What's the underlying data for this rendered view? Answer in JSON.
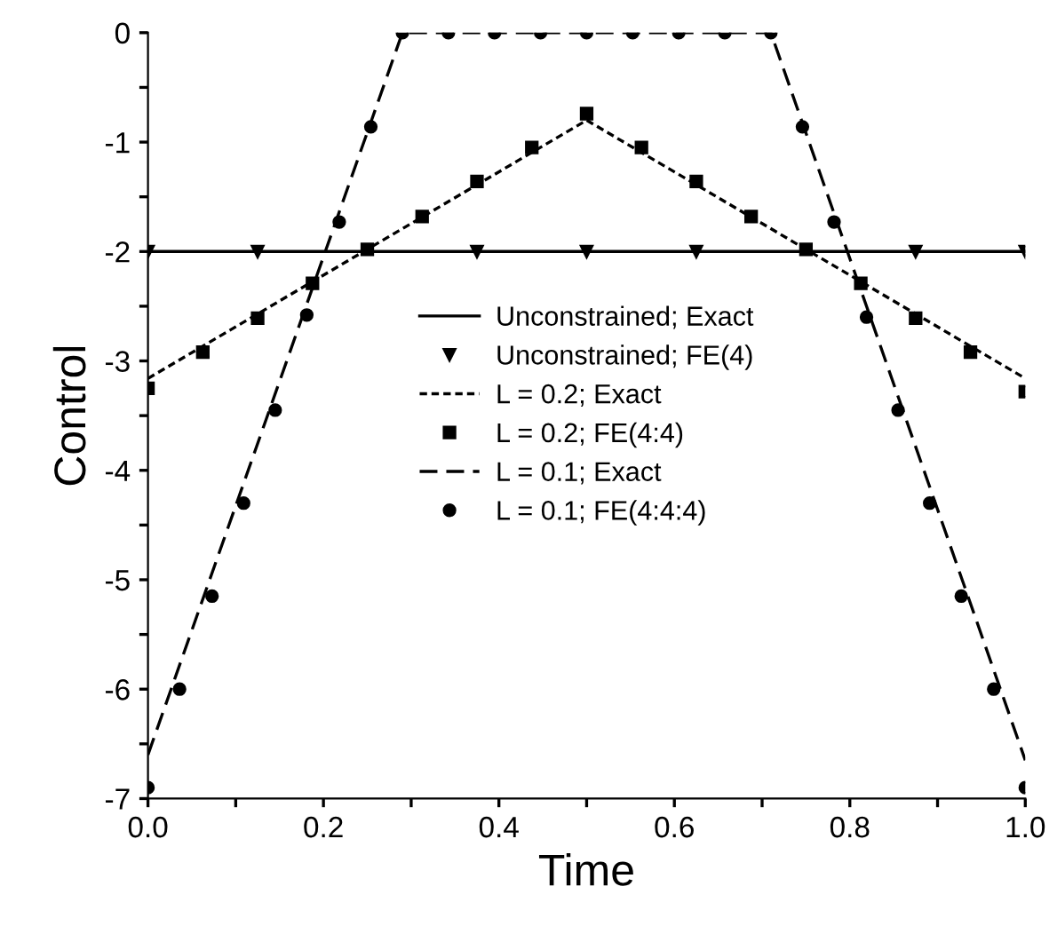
{
  "chart_data": {
    "type": "line",
    "xlabel": "Time",
    "ylabel": "Control",
    "xlim": [
      0,
      1
    ],
    "ylim": [
      -7,
      0
    ],
    "xticks": [
      {
        "value": 0,
        "label": "0.0"
      },
      {
        "value": 0.1,
        "label": null
      },
      {
        "value": 0.2,
        "label": "0.2"
      },
      {
        "value": 0.3,
        "label": null
      },
      {
        "value": 0.4,
        "label": "0.4"
      },
      {
        "value": 0.5,
        "label": null
      },
      {
        "value": 0.6,
        "label": "0.6"
      },
      {
        "value": 0.7,
        "label": null
      },
      {
        "value": 0.8,
        "label": "0.8"
      },
      {
        "value": 0.9,
        "label": null
      },
      {
        "value": 1,
        "label": "1.0"
      }
    ],
    "yticks": [
      {
        "value": -7,
        "label": "-7"
      },
      {
        "value": -6.5,
        "label": null
      },
      {
        "value": -6,
        "label": "-6"
      },
      {
        "value": -5.5,
        "label": null
      },
      {
        "value": -5,
        "label": "-5"
      },
      {
        "value": -4.5,
        "label": null
      },
      {
        "value": -4,
        "label": "-4"
      },
      {
        "value": -3.5,
        "label": null
      },
      {
        "value": -3,
        "label": "-3"
      },
      {
        "value": -2.5,
        "label": null
      },
      {
        "value": -2,
        "label": "-2"
      },
      {
        "value": -1.5,
        "label": null
      },
      {
        "value": -1,
        "label": "-1"
      },
      {
        "value": -0.5,
        "label": null
      },
      {
        "value": 0,
        "label": "0"
      }
    ],
    "grid": false,
    "legend": "center",
    "series": [
      {
        "name": "Unconstrained; Exact",
        "line_style": "solid",
        "marker": "none",
        "color": "#000000",
        "x": [
          0,
          1
        ],
        "values": [
          -2,
          -2
        ]
      },
      {
        "name": "Unconstrained; FE(4)",
        "type": "scatter",
        "marker": "triangle",
        "color": "#000000",
        "x": [
          0,
          0.125,
          0.25,
          0.375,
          0.5,
          0.625,
          0.75,
          0.875,
          1
        ],
        "values": [
          -2,
          -2,
          null,
          -2,
          -2,
          -2,
          null,
          -2,
          -2
        ]
      },
      {
        "name": "L = 0.2; Exact",
        "line_style": "dotted",
        "marker": "none",
        "color": "#000000",
        "x": [
          0,
          0.5,
          1
        ],
        "values": [
          -3.16,
          -0.8,
          -3.16
        ]
      },
      {
        "name": "L = 0.2; FE(4:4)",
        "type": "scatter",
        "marker": "square",
        "color": "#000000",
        "x": [
          0,
          0.0625,
          0.125,
          0.1875,
          0.25,
          0.3125,
          0.375,
          0.4375,
          0.5,
          0.5625,
          0.625,
          0.6875,
          0.75,
          0.8125,
          0.875,
          0.9375,
          1
        ],
        "values": [
          -3.25,
          -2.92,
          -2.61,
          -2.29,
          -1.98,
          -1.68,
          -1.36,
          -1.05,
          -0.74,
          -1.05,
          -1.36,
          -1.68,
          -1.98,
          -2.29,
          -2.61,
          -2.92,
          -3.28
        ]
      },
      {
        "name": "L = 0.1; Exact",
        "line_style": "dashed",
        "marker": "none",
        "color": "#000000",
        "x": [
          0,
          0.29,
          0.71,
          1
        ],
        "values": [
          -6.6,
          0,
          0,
          -6.65
        ]
      },
      {
        "name": "L = 0.1; FE(4:4:4)",
        "type": "scatter",
        "marker": "circle",
        "color": "#000000",
        "x": [
          0,
          0.036,
          0.073,
          0.109,
          0.145,
          0.181,
          0.218,
          0.254,
          0.29,
          0.3425,
          0.395,
          0.4475,
          0.5,
          0.5525,
          0.605,
          0.6575,
          0.71,
          0.746,
          0.782,
          0.819,
          0.855,
          0.891,
          0.927,
          0.964,
          1
        ],
        "values": [
          -6.9,
          -6.0,
          -5.15,
          -4.3,
          -3.45,
          -2.58,
          -1.73,
          -0.86,
          0,
          0,
          0,
          0,
          0,
          0,
          0,
          0,
          0,
          -0.86,
          -1.73,
          -2.6,
          -3.45,
          -4.3,
          -5.15,
          -6.0,
          -6.9
        ]
      }
    ]
  }
}
